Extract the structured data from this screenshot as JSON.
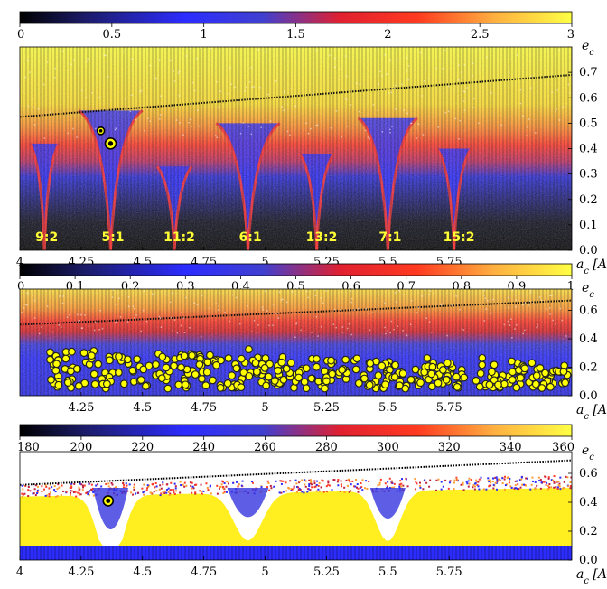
{
  "chart_data": [
    {
      "type": "heatmap",
      "colorbar": {
        "min": 0,
        "max": 3,
        "tick_values": [
          0,
          0.5,
          1,
          1.5,
          2,
          2.5,
          3
        ],
        "tick_labels": [
          "0",
          "0.5",
          "1",
          "1.5",
          "2",
          "2.5",
          "3"
        ],
        "colors": [
          "#000000",
          "#2c2cff",
          "#ff2020",
          "#ffff44"
        ]
      },
      "xlim": [
        4,
        6.25
      ],
      "ylim": [
        0,
        0.8
      ],
      "x_tick_values": [
        4,
        4.25,
        4.5,
        4.75,
        5,
        5.25,
        5.5,
        5.75
      ],
      "x_tick_labels": [
        "4",
        "4.25",
        "4.5",
        "4.75",
        "5",
        "5.25",
        "5.5",
        "5.75"
      ],
      "y_tick_values": [
        0,
        0.1,
        0.2,
        0.3,
        0.4,
        0.5,
        0.6,
        0.7
      ],
      "y_tick_labels": [
        "0.0",
        "0.1",
        "0.2",
        "0.3",
        "0.4",
        "0.5",
        "0.6",
        "0.7"
      ],
      "xlabel": "a_c [AU]",
      "ylabel": "e_c",
      "resonances": [
        {
          "label": "9:2",
          "a": 4.1
        },
        {
          "label": "5:1",
          "a": 4.37
        },
        {
          "label": "11:2",
          "a": 4.63
        },
        {
          "label": "6:1",
          "a": 4.93
        },
        {
          "label": "13:2",
          "a": 5.21
        },
        {
          "label": "7:1",
          "a": 5.5
        },
        {
          "label": "15:2",
          "a": 5.77
        }
      ],
      "markers": [
        {
          "a": 4.37,
          "e": 0.42,
          "style": "large"
        },
        {
          "a": 4.33,
          "e": 0.47,
          "style": "small"
        }
      ],
      "boundary_line": {
        "x": [
          4,
          6.25
        ],
        "y": [
          0.525,
          0.69
        ]
      }
    },
    {
      "type": "heatmap",
      "colorbar": {
        "min": 0,
        "max": 1,
        "tick_values": [
          0,
          0.1,
          0.2,
          0.3,
          0.4,
          0.5,
          0.6,
          0.7,
          0.8,
          0.9,
          1
        ],
        "tick_labels": [
          "0",
          "0.1",
          "0.2",
          "0.3",
          "0.4",
          "0.5",
          "0.6",
          "0.7",
          "0.8",
          "0.9",
          "1"
        ],
        "colors": [
          "#000000",
          "#2c2cff",
          "#ff2020",
          "#ffff44"
        ]
      },
      "xlim": [
        4,
        6.25
      ],
      "ylim": [
        0,
        0.75
      ],
      "x_tick_values": [
        4.25,
        4.5,
        4.75,
        5,
        5.25,
        5.5,
        5.75
      ],
      "x_tick_labels": [
        "4.25",
        "4.5",
        "4.75",
        "5",
        "5.25",
        "5.5",
        "5.75"
      ],
      "y_tick_values": [
        0,
        0.2,
        0.4,
        0.6
      ],
      "y_tick_labels": [
        "0.0",
        "0.2",
        "0.4",
        "0.6"
      ],
      "xlabel": "a_c [AU]",
      "ylabel": "e_c",
      "boundary_line": {
        "x": [
          4,
          6.25
        ],
        "y": [
          0.5,
          0.67
        ]
      },
      "scatter": {
        "a_range": [
          4.12,
          6.25
        ],
        "e_range": [
          0.05,
          0.4
        ],
        "e_upper": [
          0.33,
          0.2
        ],
        "count": 420,
        "marker_color": "#ffff00"
      }
    },
    {
      "type": "heatmap",
      "colorbar": {
        "min": 180,
        "max": 360,
        "tick_values": [
          180,
          200,
          220,
          240,
          260,
          280,
          300,
          320,
          340,
          360
        ],
        "tick_labels": [
          "180",
          "200",
          "220",
          "240",
          "260",
          "280",
          "300",
          "320",
          "340",
          "360"
        ],
        "colors": [
          "#000000",
          "#2c2cff",
          "#ff2020",
          "#ffff44"
        ]
      },
      "xlim": [
        4,
        6.25
      ],
      "ylim": [
        0,
        0.75
      ],
      "x_tick_values": [
        4,
        4.25,
        4.5,
        4.75,
        5,
        5.25,
        5.5,
        5.75
      ],
      "x_tick_labels": [
        "4",
        "4.25",
        "4.5",
        "4.75",
        "5",
        "5.25",
        "5.5",
        "5.75"
      ],
      "y_tick_values": [
        0,
        0.2,
        0.4,
        0.6
      ],
      "y_tick_labels": [
        "0.0",
        "0.2",
        "0.4",
        "0.6"
      ],
      "xlabel": "a_c [AU]",
      "ylabel": "e_c",
      "boundary_line": {
        "x": [
          4,
          6.25
        ],
        "y": [
          0.52,
          0.69
        ]
      },
      "markers": [
        {
          "a": 4.36,
          "e": 0.41,
          "style": "large"
        }
      ]
    }
  ]
}
